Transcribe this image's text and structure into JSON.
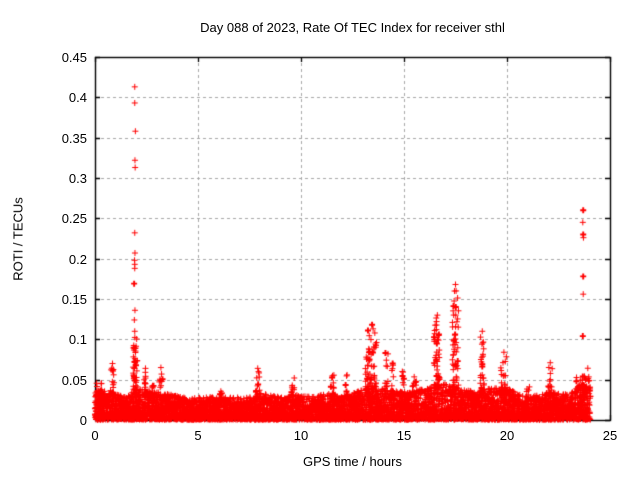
{
  "page": {
    "background": "#ffffff"
  },
  "chart_data": {
    "type": "scatter",
    "title": "Day 088 of 2023, Rate Of TEC Index for receiver sthl",
    "xlabel": "GPS time / hours",
    "ylabel": "ROTI / TECUs",
    "xlim": [
      0,
      25
    ],
    "ylim": [
      0,
      0.45
    ],
    "xticks": [
      0,
      5,
      10,
      15,
      20,
      25
    ],
    "xtick_labels": [
      "0",
      "5",
      "10",
      "15",
      "20",
      "25"
    ],
    "yticks": [
      0,
      0.05,
      0.1,
      0.15,
      0.2,
      0.25,
      0.3,
      0.35,
      0.4,
      0.45
    ],
    "ytick_labels": [
      "0",
      "0.05",
      "0.1",
      "0.15",
      "0.2",
      "0.25",
      "0.3",
      "0.35",
      "0.4",
      "0.45"
    ],
    "grid": true,
    "legend_position": "none",
    "marker": "plus",
    "marker_size_px": 7,
    "marker_color": "#ff0000",
    "grid_color": "#a8a8a8",
    "axis_color": "#000000",
    "series_name": "ROTI",
    "x_data_range": [
      0,
      24.05
    ],
    "seed": 20230088,
    "baseline_band": {
      "description": "dense quiet-time ROTI noise band hugging zero for all 24 hours",
      "n_points": 6500,
      "power": 1.6,
      "envelope": [
        [
          0,
          0.034
        ],
        [
          0.5,
          0.036
        ],
        [
          1.5,
          0.028
        ],
        [
          2,
          0.038
        ],
        [
          3,
          0.034
        ],
        [
          4,
          0.03
        ],
        [
          4.5,
          0.026
        ],
        [
          5.5,
          0.028
        ],
        [
          6.5,
          0.028
        ],
        [
          7.5,
          0.028
        ],
        [
          8,
          0.033
        ],
        [
          9,
          0.028
        ],
        [
          9.5,
          0.031
        ],
        [
          10.5,
          0.029
        ],
        [
          11.5,
          0.033
        ],
        [
          12,
          0.029
        ],
        [
          13,
          0.037
        ],
        [
          13.5,
          0.042
        ],
        [
          14,
          0.038
        ],
        [
          15,
          0.034
        ],
        [
          16,
          0.038
        ],
        [
          16.5,
          0.044
        ],
        [
          17.2,
          0.044
        ],
        [
          18,
          0.036
        ],
        [
          19,
          0.038
        ],
        [
          20,
          0.04
        ],
        [
          20.5,
          0.032
        ],
        [
          21,
          0.027
        ],
        [
          22,
          0.034
        ],
        [
          23,
          0.031
        ],
        [
          23.5,
          0.042
        ],
        [
          24.05,
          0.044
        ]
      ]
    },
    "peak_clusters": [
      {
        "x": 0.18,
        "spread": 0.15,
        "ymin": 0.028,
        "ymax": 0.048,
        "n": 14
      },
      {
        "x": 0.85,
        "spread": 0.1,
        "ymin": 0.03,
        "ymax": 0.068,
        "n": 16
      },
      {
        "x": 1.95,
        "spread": 0.1,
        "ymin": 0.035,
        "ymax": 0.105,
        "n": 40
      },
      {
        "x": 2.45,
        "spread": 0.08,
        "ymin": 0.028,
        "ymax": 0.062,
        "n": 12
      },
      {
        "x": 2.8,
        "spread": 0.06,
        "ymin": 0.028,
        "ymax": 0.05,
        "n": 8
      },
      {
        "x": 3.2,
        "spread": 0.08,
        "ymin": 0.028,
        "ymax": 0.063,
        "n": 12
      },
      {
        "x": 6.1,
        "spread": 0.06,
        "ymin": 0.024,
        "ymax": 0.042,
        "n": 8
      },
      {
        "x": 7.9,
        "spread": 0.1,
        "ymin": 0.028,
        "ymax": 0.06,
        "n": 14
      },
      {
        "x": 9.6,
        "spread": 0.08,
        "ymin": 0.024,
        "ymax": 0.054,
        "n": 10
      },
      {
        "x": 11.5,
        "spread": 0.1,
        "ymin": 0.026,
        "ymax": 0.056,
        "n": 12
      },
      {
        "x": 12.2,
        "spread": 0.06,
        "ymin": 0.026,
        "ymax": 0.058,
        "n": 8
      },
      {
        "x": 13.4,
        "spread": 0.28,
        "ymin": 0.038,
        "ymax": 0.112,
        "n": 55
      },
      {
        "x": 14.15,
        "spread": 0.08,
        "ymin": 0.036,
        "ymax": 0.082,
        "n": 10
      },
      {
        "x": 14.45,
        "spread": 0.06,
        "ymin": 0.032,
        "ymax": 0.068,
        "n": 8
      },
      {
        "x": 14.9,
        "spread": 0.1,
        "ymin": 0.028,
        "ymax": 0.063,
        "n": 10
      },
      {
        "x": 15.5,
        "spread": 0.1,
        "ymin": 0.028,
        "ymax": 0.058,
        "n": 10
      },
      {
        "x": 16.6,
        "spread": 0.15,
        "ymin": 0.038,
        "ymax": 0.128,
        "n": 45
      },
      {
        "x": 17.5,
        "spread": 0.15,
        "ymin": 0.038,
        "ymax": 0.162,
        "n": 50
      },
      {
        "x": 18.8,
        "spread": 0.1,
        "ymin": 0.032,
        "ymax": 0.108,
        "n": 25
      },
      {
        "x": 19.85,
        "spread": 0.15,
        "ymin": 0.032,
        "ymax": 0.082,
        "n": 25
      },
      {
        "x": 21.0,
        "spread": 0.1,
        "ymin": 0.022,
        "ymax": 0.042,
        "n": 8
      },
      {
        "x": 22.1,
        "spread": 0.1,
        "ymin": 0.028,
        "ymax": 0.068,
        "n": 14
      },
      {
        "x": 23.6,
        "spread": 0.3,
        "ymin": 0.028,
        "ymax": 0.056,
        "n": 30
      },
      {
        "x": 23.95,
        "spread": 0.05,
        "ymin": 0.035,
        "ymax": 0.07,
        "n": 6
      }
    ],
    "peak_points": [
      {
        "x": 1.93,
        "y": 0.413
      },
      {
        "x": 1.93,
        "y": 0.393
      },
      {
        "x": 1.96,
        "y": 0.358
      },
      {
        "x": 1.94,
        "y": 0.322
      },
      {
        "x": 1.95,
        "y": 0.313
      },
      {
        "x": 1.93,
        "y": 0.232
      },
      {
        "x": 1.94,
        "y": 0.207
      },
      {
        "x": 1.92,
        "y": 0.198
      },
      {
        "x": 1.93,
        "y": 0.193
      },
      {
        "x": 1.93,
        "y": 0.188
      },
      {
        "x": 1.9,
        "y": 0.169,
        "bold": true
      },
      {
        "x": 1.94,
        "y": 0.136
      },
      {
        "x": 1.91,
        "y": 0.124
      },
      {
        "x": 1.93,
        "y": 0.11
      },
      {
        "x": 0.85,
        "y": 0.07
      },
      {
        "x": 2.45,
        "y": 0.064
      },
      {
        "x": 3.2,
        "y": 0.065
      },
      {
        "x": 7.9,
        "y": 0.064
      },
      {
        "x": 13.45,
        "y": 0.118,
        "bold": true
      },
      {
        "x": 13.5,
        "y": 0.113
      },
      {
        "x": 14.1,
        "y": 0.083,
        "bold": true
      },
      {
        "x": 14.45,
        "y": 0.07,
        "bold": true
      },
      {
        "x": 16.62,
        "y": 0.13
      },
      {
        "x": 16.58,
        "y": 0.122
      },
      {
        "x": 17.5,
        "y": 0.168
      },
      {
        "x": 17.53,
        "y": 0.16
      },
      {
        "x": 18.8,
        "y": 0.11
      },
      {
        "x": 19.85,
        "y": 0.084
      },
      {
        "x": 22.1,
        "y": 0.071
      },
      {
        "x": 23.7,
        "y": 0.26,
        "bold": true
      },
      {
        "x": 23.68,
        "y": 0.245
      },
      {
        "x": 23.7,
        "y": 0.23,
        "bold": true
      },
      {
        "x": 23.71,
        "y": 0.226
      },
      {
        "x": 23.7,
        "y": 0.178,
        "bold": true
      },
      {
        "x": 23.7,
        "y": 0.156
      },
      {
        "x": 23.68,
        "y": 0.104,
        "bold": true
      }
    ]
  }
}
